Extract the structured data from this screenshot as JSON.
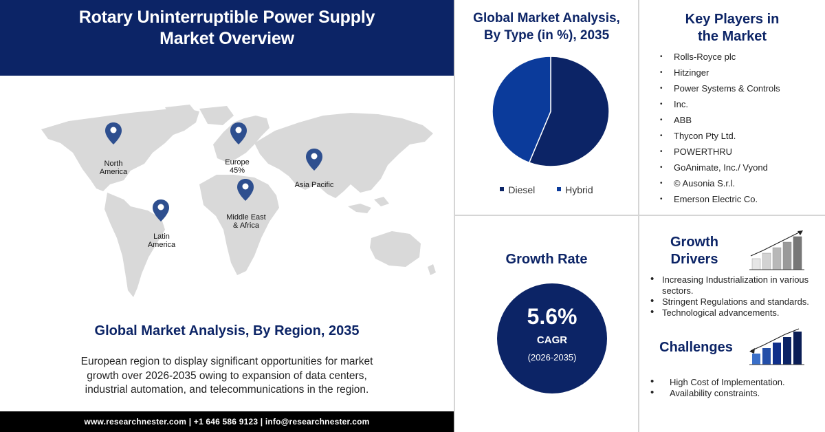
{
  "header": {
    "title_line1": "Rotary Uninterruptible Power Supply",
    "title_line2": "Market Overview"
  },
  "map": {
    "regions": [
      {
        "name": "North America",
        "line1": "North",
        "line2": "America"
      },
      {
        "name": "Europe",
        "line1": "Europe",
        "line2": "45%"
      },
      {
        "name": "Asia Pacific",
        "line1": "Asia Pacific",
        "line2": ""
      },
      {
        "name": "Middle East & Africa",
        "line1": "Middle East",
        "line2": "& Africa"
      },
      {
        "name": "Latin America",
        "line1": "Latin",
        "line2": "America"
      }
    ],
    "pin_color": "#2e4f8f"
  },
  "region_section": {
    "heading": "Global Market Analysis, By Region, 2035",
    "description_line1": "European region to display significant opportunities for market",
    "description_line2": "growth over 2026-2035  owing to expansion of data centers,",
    "description_line3": "industrial automation, and telecommunications in the region."
  },
  "footer": {
    "text": "www.researchnester.com  | +1 646 586 9123 | info@researchnester.com"
  },
  "chart_data": {
    "type": "pie",
    "title": "Global Market Analysis, By Type (in %), 2035",
    "title_line1": "Global Market Analysis,",
    "title_line2": "By Type (in %), 2035",
    "categories": [
      "Diesel",
      "Hybrid"
    ],
    "values": [
      56,
      44
    ],
    "colors": [
      "#0c2466",
      "#0b3b9b"
    ],
    "legend_position": "bottom"
  },
  "key_players": {
    "title_line1": "Key Players in",
    "title_line2": "the Market",
    "items": [
      "Rolls-Royce plc",
      " Hitzinger",
      "Power Systems & Controls",
      "Inc.",
      "ABB",
      "Thycon Pty Ltd.",
      " POWERTHRU",
      "GoAnimate, Inc./ Vyond",
      "© Ausonia S.r.l.",
      "Emerson Electric Co."
    ]
  },
  "growth_rate": {
    "title": "Growth Rate",
    "value": "5.6%",
    "label": "CAGR",
    "period": "(2026-2035)",
    "circle_color": "#0c2466"
  },
  "growth_drivers": {
    "title_line1": "Growth",
    "title_line2": "Drivers",
    "items": [
      "Increasing Industrialization  in various sectors.",
      "Stringent Regulations and standards.",
      "Technological advancements."
    ]
  },
  "challenges": {
    "title": "Challenges",
    "items": [
      "High Cost of  Implementation.",
      "Availability constraints."
    ]
  }
}
